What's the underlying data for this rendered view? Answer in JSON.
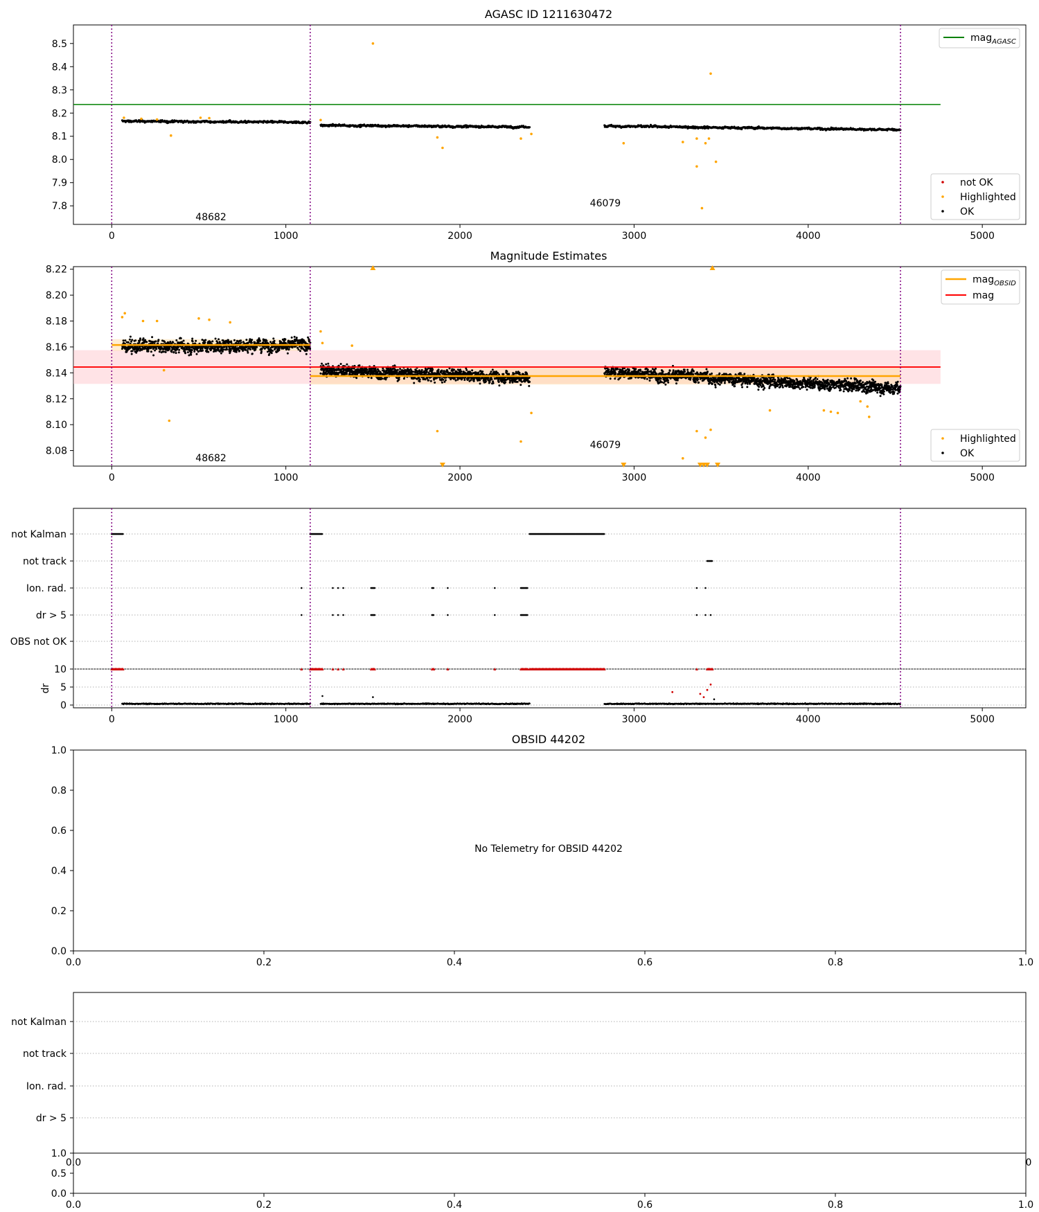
{
  "colors": {
    "ok": "#000000",
    "highlighted": "#ffa500",
    "not_ok": "#d00000",
    "obsid_line": "#800080",
    "agasc_line": "#008000",
    "mag_line": "#ff0000",
    "mag_band": "#ffc0c8",
    "mag_obsid_line": "#ffa500",
    "grid": "#b0b0b0"
  },
  "chart_data": [
    {
      "type": "scatter",
      "title": "AGASC ID 1211630472",
      "xlim": [
        -220,
        5250
      ],
      "ylim": [
        7.72,
        8.58
      ],
      "xticks": [
        0,
        1000,
        2000,
        3000,
        4000,
        5000
      ],
      "yticks": [
        7.8,
        7.9,
        8.0,
        8.1,
        8.2,
        8.3,
        8.4,
        8.5
      ],
      "obsid_boundaries": [
        0,
        1140,
        4530
      ],
      "obsid_labels": [
        {
          "text": "48682",
          "x": 570,
          "y": 7.75
        },
        {
          "text": "46079",
          "x": 2835,
          "y": 7.81
        }
      ],
      "reference_lines": [
        {
          "name": "mag_AGASC",
          "y": 8.237,
          "x_range": [
            -220,
            4760
          ]
        }
      ],
      "legend_lines": [
        "mag_AGASC"
      ],
      "legend_points": [
        "not OK",
        "Highlighted",
        "OK"
      ],
      "legend_placement": [
        "top-right",
        "bottom-right"
      ],
      "segments": [
        {
          "x_start": 60,
          "x_end": 1140,
          "y_start": 8.165,
          "y_end": 8.16,
          "spread": 0.011
        },
        {
          "x_start": 1200,
          "x_end": 2400,
          "y_start": 8.147,
          "y_end": 8.14,
          "spread": 0.011
        },
        {
          "x_start": 2830,
          "x_end": 4530,
          "y_start": 8.144,
          "y_end": 8.128,
          "spread": 0.011
        }
      ],
      "highlighted_points": [
        [
          70,
          8.18
        ],
        [
          170,
          8.175
        ],
        [
          260,
          8.172
        ],
        [
          340,
          8.103
        ],
        [
          510,
          8.18
        ],
        [
          560,
          8.178
        ],
        [
          1200,
          8.17
        ],
        [
          1500,
          8.5
        ],
        [
          1870,
          8.095
        ],
        [
          1900,
          8.05
        ],
        [
          2350,
          8.09
        ],
        [
          2410,
          8.11
        ],
        [
          2940,
          8.07
        ],
        [
          3280,
          8.075
        ],
        [
          3360,
          7.97
        ],
        [
          3390,
          7.79
        ],
        [
          3410,
          8.07
        ],
        [
          3440,
          8.37
        ],
        [
          3470,
          7.99
        ],
        [
          3360,
          8.09
        ],
        [
          3430,
          8.09
        ]
      ]
    },
    {
      "type": "scatter",
      "title": "Magnitude Estimates",
      "xlim": [
        -220,
        5250
      ],
      "ylim": [
        8.068,
        8.222
      ],
      "xticks": [
        0,
        1000,
        2000,
        3000,
        4000,
        5000
      ],
      "yticks": [
        8.08,
        8.1,
        8.12,
        8.14,
        8.16,
        8.18,
        8.2,
        8.22
      ],
      "obsid_boundaries": [
        0,
        1140,
        4530
      ],
      "obsid_labels": [
        {
          "text": "48682",
          "x": 570,
          "y": 8.074
        },
        {
          "text": "46079",
          "x": 2835,
          "y": 8.084
        }
      ],
      "mag": {
        "name": "mag",
        "y": 8.1445,
        "band": [
          8.1315,
          8.1575
        ],
        "x_range": [
          -220,
          4760
        ]
      },
      "mag_obsid": [
        {
          "x_range": [
            0,
            1140
          ],
          "y": 8.1615,
          "band": [
            8.157,
            8.166
          ]
        },
        {
          "x_range": [
            1140,
            4530
          ],
          "y": 8.1375,
          "band": [
            8.131,
            8.144
          ]
        }
      ],
      "legend_lines": [
        "mag_OBSID",
        "mag"
      ],
      "legend_points": [
        "Highlighted",
        "OK"
      ],
      "legend_placement": [
        "top-right",
        "bottom-right"
      ],
      "segments": [
        {
          "x_start": 60,
          "x_end": 1140,
          "y_start": 8.16,
          "y_end": 8.162,
          "spread": 0.012
        },
        {
          "x_start": 1200,
          "x_end": 2400,
          "y_start": 8.142,
          "y_end": 8.136,
          "spread": 0.011
        },
        {
          "x_start": 2830,
          "x_end": 4530,
          "y_start": 8.141,
          "y_end": 8.128,
          "spread": 0.011
        }
      ],
      "highlighted_points": [
        [
          60,
          8.183
        ],
        [
          75,
          8.186
        ],
        [
          180,
          8.18
        ],
        [
          260,
          8.18
        ],
        [
          300,
          8.142
        ],
        [
          330,
          8.103
        ],
        [
          500,
          8.182
        ],
        [
          560,
          8.181
        ],
        [
          680,
          8.179
        ],
        [
          1200,
          8.172
        ],
        [
          1210,
          8.163
        ],
        [
          1380,
          8.161
        ],
        [
          1870,
          8.095
        ],
        [
          2350,
          8.087
        ],
        [
          2410,
          8.109
        ],
        [
          3280,
          8.074
        ],
        [
          3360,
          8.095
        ],
        [
          3410,
          8.09
        ],
        [
          3440,
          8.096
        ],
        [
          3780,
          8.111
        ],
        [
          4090,
          8.111
        ],
        [
          4130,
          8.11
        ],
        [
          4170,
          8.109
        ],
        [
          4340,
          8.114
        ],
        [
          4350,
          8.106
        ],
        [
          4300,
          8.118
        ]
      ],
      "clipped_high": [
        1500,
        3450
      ],
      "clipped_low": [
        1900,
        2940,
        3380,
        3400,
        3420,
        3480
      ]
    },
    {
      "type": "scatter",
      "title": "",
      "xlim": [
        -220,
        5250
      ],
      "xticks": [
        0,
        1000,
        2000,
        3000,
        4000,
        5000
      ],
      "flag_labels": [
        "not Kalman",
        "not track",
        "Ion. rad.",
        "dr > 5",
        "OBS not OK"
      ],
      "obsid_boundaries": [
        0,
        1140,
        4530
      ],
      "flag_runs": {
        "not Kalman": [
          [
            0,
            65
          ],
          [
            1140,
            1210
          ],
          [
            2400,
            2830
          ]
        ],
        "not track": [
          [
            3420,
            3450
          ]
        ],
        "Ion. rad.": [
          [
            1090,
            1090
          ],
          [
            1270,
            1270
          ],
          [
            1300,
            1300
          ],
          [
            1330,
            1330
          ],
          [
            1490,
            1510
          ],
          [
            1840,
            1850
          ],
          [
            1930,
            1930
          ],
          [
            2200,
            2200
          ],
          [
            2350,
            2370
          ],
          [
            2375,
            2390
          ],
          [
            3360,
            3360
          ],
          [
            3410,
            3410
          ]
        ],
        "dr > 5": [
          [
            1090,
            1090
          ],
          [
            1270,
            1270
          ],
          [
            1300,
            1300
          ],
          [
            1330,
            1330
          ],
          [
            1490,
            1510
          ],
          [
            1840,
            1850
          ],
          [
            1930,
            1930
          ],
          [
            2200,
            2200
          ],
          [
            2350,
            2370
          ],
          [
            2375,
            2390
          ],
          [
            3360,
            3360
          ],
          [
            3410,
            3410
          ],
          [
            3440,
            3440
          ]
        ],
        "OBS not OK": []
      },
      "dr_panel": {
        "ylabel": "dr",
        "ylim": [
          0,
          10
        ],
        "yticks": [
          0,
          5,
          10
        ],
        "ok_segments": [
          [
            60,
            1140
          ],
          [
            1200,
            2400
          ],
          [
            2830,
            4530
          ]
        ],
        "ok_level": 0.35,
        "not_ok_runs_at_10": [
          [
            0,
            65
          ],
          [
            1090,
            1090
          ],
          [
            1140,
            1210
          ],
          [
            1270,
            1270
          ],
          [
            1300,
            1300
          ],
          [
            1330,
            1330
          ],
          [
            1490,
            1510
          ],
          [
            1840,
            1850
          ],
          [
            1930,
            1930
          ],
          [
            2200,
            2200
          ],
          [
            2350,
            2390
          ],
          [
            2400,
            2830
          ],
          [
            3360,
            3360
          ],
          [
            3420,
            3450
          ]
        ],
        "not_ok_points": [
          [
            3220,
            3.6
          ],
          [
            3380,
            3.1
          ],
          [
            3420,
            4.2
          ],
          [
            3440,
            5.7
          ],
          [
            3400,
            2.2
          ]
        ],
        "ok_outliers": [
          [
            1210,
            2.5
          ],
          [
            1500,
            2.2
          ],
          [
            3460,
            1.6
          ]
        ]
      }
    },
    {
      "type": "scatter",
      "title": "OBSID 44202",
      "message": "No Telemetry for OBSID 44202",
      "xlim": [
        0,
        1
      ],
      "ylim": [
        0,
        1
      ],
      "xticks": [
        "0.0",
        "0.2",
        "0.4",
        "0.6",
        "0.8",
        "1.0"
      ],
      "yticks": [
        "0.0",
        "0.2",
        "0.4",
        "0.6",
        "0.8",
        "1.0"
      ]
    },
    {
      "type": "scatter",
      "title": "",
      "flag_labels": [
        "not Kalman",
        "not track",
        "Ion. rad.",
        "dr > 5"
      ],
      "overlap_tick_left": "0.0",
      "overlap_tick_right": "0",
      "lower_panel": {
        "ylim": [
          0,
          1
        ],
        "yticks": [
          "0.0",
          "0.5",
          "1.0"
        ],
        "xticks": [
          "0.0",
          "0.2",
          "0.4",
          "0.6",
          "0.8",
          "1.0"
        ]
      }
    }
  ]
}
